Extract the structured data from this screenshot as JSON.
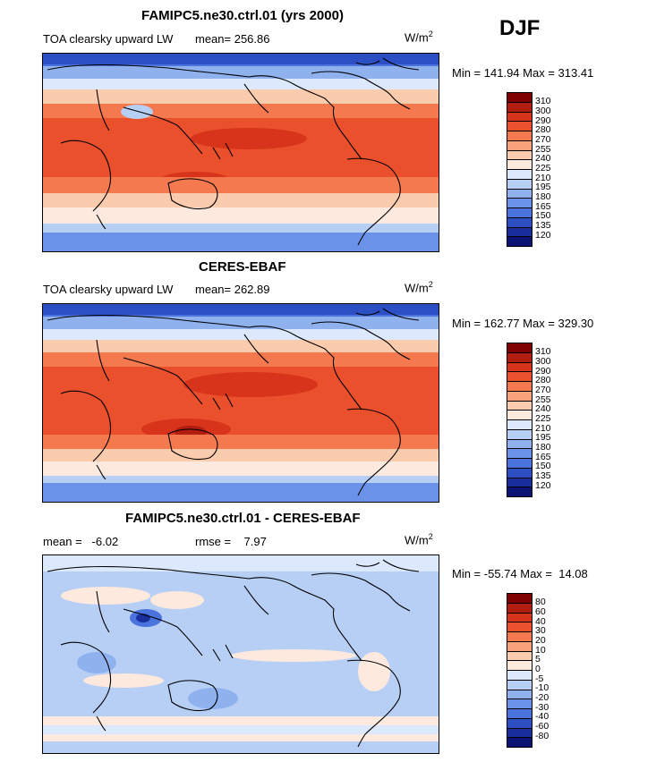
{
  "season": "DJF",
  "panels": [
    {
      "title": "FAMIPC5.ne30.ctrl.01 (yrs 2000)",
      "left_label": "TOA clearsky upward LW",
      "mean_text": "mean= 256.86",
      "rmse_text": "",
      "units": "W/m",
      "units_exp": "2",
      "minmax": "Min = 141.94 Max = 313.41",
      "levels": [
        "310",
        "300",
        "290",
        "280",
        "270",
        "255",
        "240",
        "225",
        "210",
        "195",
        "180",
        "165",
        "150",
        "135",
        "120"
      ],
      "colors": [
        "#7f0000",
        "#b11e0f",
        "#d8341b",
        "#e9502b",
        "#f4794e",
        "#f8a27c",
        "#fbcbad",
        "#fde9dd",
        "#dce8fb",
        "#b8cff5",
        "#8fb2ef",
        "#6a92e8",
        "#4a73de",
        "#2d4fc4",
        "#1a2f9b",
        "#0b1473"
      ]
    },
    {
      "title": "CERES-EBAF",
      "left_label": "TOA clearsky upward LW",
      "mean_text": "mean= 262.89",
      "rmse_text": "",
      "units": "W/m",
      "units_exp": "2",
      "minmax": "Min = 162.77 Max = 329.30",
      "levels": [
        "310",
        "300",
        "290",
        "280",
        "270",
        "255",
        "240",
        "225",
        "210",
        "195",
        "180",
        "165",
        "150",
        "135",
        "120"
      ],
      "colors": [
        "#7f0000",
        "#b11e0f",
        "#d8341b",
        "#e9502b",
        "#f4794e",
        "#f8a27c",
        "#fbcbad",
        "#fde9dd",
        "#dce8fb",
        "#b8cff5",
        "#8fb2ef",
        "#6a92e8",
        "#4a73de",
        "#2d4fc4",
        "#1a2f9b",
        "#0b1473"
      ]
    },
    {
      "title": "FAMIPC5.ne30.ctrl.01 - CERES-EBAF",
      "left_label": "mean =   -6.02",
      "mean_text": "",
      "rmse_text": "rmse =    7.97",
      "units": "W/m",
      "units_exp": "2",
      "minmax": "Min = -55.74 Max =  14.08",
      "levels": [
        "80",
        "60",
        "40",
        "30",
        "20",
        "10",
        "5",
        "0",
        "-5",
        "-10",
        "-20",
        "-30",
        "-40",
        "-60",
        "-80"
      ],
      "colors": [
        "#7f0000",
        "#b11e0f",
        "#d8341b",
        "#e9502b",
        "#f4794e",
        "#f8a27c",
        "#fbcbad",
        "#fde9dd",
        "#dce8fb",
        "#b8cff5",
        "#8fb2ef",
        "#6a92e8",
        "#4a73de",
        "#2d4fc4",
        "#1a2f9b",
        "#0b1473"
      ]
    }
  ]
}
